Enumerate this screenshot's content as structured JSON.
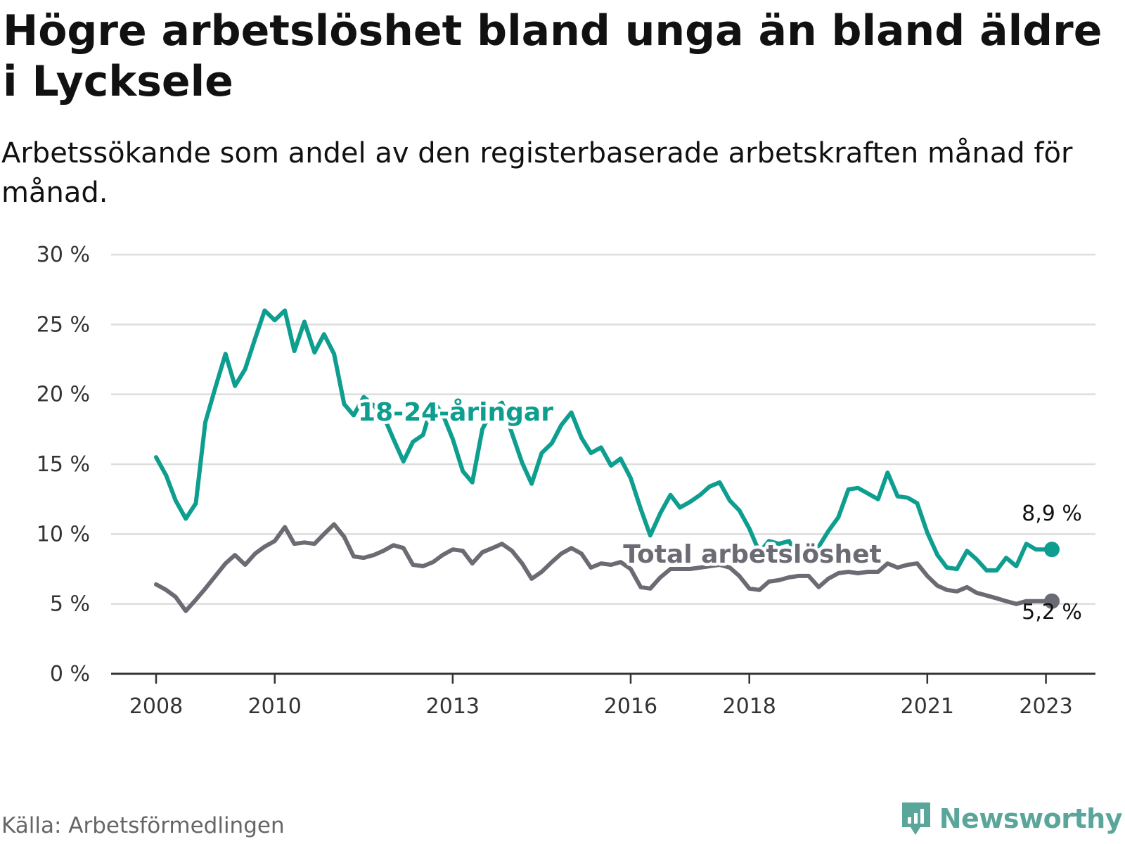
{
  "title": "Högre arbetslöshet bland unga än bland äldre i Lycksele",
  "subtitle": "Arbetssökande som andel av den registerbaserade arbetskraften månad för månad.",
  "source": "Källa: Arbetsförmedlingen",
  "brand": {
    "name": "Newsworthy",
    "icon": "newsworthy-logo-icon",
    "color": "#5aa69b"
  },
  "colors": {
    "youth": "#0e9e8f",
    "total": "#6b6b73",
    "grid": "#dddddd",
    "axis": "#333333"
  },
  "chart_data": {
    "type": "line",
    "x_ticks": [
      "2008",
      "2010",
      "2013",
      "2016",
      "2018",
      "2021",
      "2023"
    ],
    "y_ticks": [
      "0 %",
      "5 %",
      "10 %",
      "15 %",
      "20 %",
      "25 %",
      "30 %"
    ],
    "ylim": [
      0,
      30
    ],
    "grid": true,
    "series": [
      {
        "key": "youth",
        "name": "18-24-åringar",
        "end_label": "8,9 %",
        "x": [
          2008.0,
          2008.17,
          2008.33,
          2008.5,
          2008.67,
          2008.83,
          2009.0,
          2009.17,
          2009.33,
          2009.5,
          2009.67,
          2009.83,
          2010.0,
          2010.17,
          2010.33,
          2010.5,
          2010.67,
          2010.83,
          2011.0,
          2011.17,
          2011.33,
          2011.5,
          2011.67,
          2011.83,
          2012.0,
          2012.17,
          2012.33,
          2012.5,
          2012.67,
          2012.83,
          2013.0,
          2013.17,
          2013.33,
          2013.5,
          2013.67,
          2013.83,
          2014.0,
          2014.17,
          2014.33,
          2014.5,
          2014.67,
          2014.83,
          2015.0,
          2015.17,
          2015.33,
          2015.5,
          2015.67,
          2015.83,
          2016.0,
          2016.17,
          2016.33,
          2016.5,
          2016.67,
          2016.83,
          2017.0,
          2017.17,
          2017.33,
          2017.5,
          2017.67,
          2017.83,
          2018.0,
          2018.17,
          2018.33,
          2018.5,
          2018.67,
          2018.83,
          2019.0,
          2019.17,
          2019.33,
          2019.5,
          2019.67,
          2019.83,
          2020.0,
          2020.17,
          2020.33,
          2020.5,
          2020.67,
          2020.83,
          2021.0,
          2021.17,
          2021.33,
          2021.5,
          2021.67,
          2021.83,
          2022.0,
          2022.17,
          2022.33,
          2022.5,
          2022.67,
          2022.83,
          2023.0,
          2023.1
        ],
        "values": [
          15.5,
          14.2,
          12.4,
          11.1,
          12.2,
          18.0,
          20.5,
          22.9,
          20.6,
          21.8,
          24.0,
          26.0,
          25.3,
          26.0,
          23.1,
          25.2,
          23.0,
          24.3,
          22.9,
          19.3,
          18.5,
          19.8,
          19.2,
          18.5,
          16.8,
          15.2,
          16.6,
          17.1,
          19.5,
          18.6,
          16.8,
          14.5,
          13.7,
          17.5,
          18.9,
          19.4,
          17.2,
          15.1,
          13.6,
          15.8,
          16.5,
          17.8,
          18.7,
          16.9,
          15.8,
          16.2,
          14.9,
          15.4,
          14.0,
          11.8,
          9.9,
          11.5,
          12.8,
          11.9,
          12.3,
          12.8,
          13.4,
          13.7,
          12.4,
          11.7,
          10.4,
          8.7,
          9.5,
          9.3,
          9.5,
          8.3,
          8.4,
          9.1,
          10.2,
          11.2,
          13.2,
          13.3,
          12.9,
          12.5,
          14.4,
          12.7,
          12.6,
          12.2,
          10.1,
          8.5,
          7.6,
          7.5,
          8.8,
          8.2,
          7.4,
          7.4,
          8.3,
          7.7,
          9.3,
          8.9,
          8.9,
          8.9
        ]
      },
      {
        "key": "total",
        "name": "Total arbetslöshet",
        "end_label": "5,2 %",
        "x": [
          2008.0,
          2008.17,
          2008.33,
          2008.5,
          2008.67,
          2008.83,
          2009.0,
          2009.17,
          2009.33,
          2009.5,
          2009.67,
          2009.83,
          2010.0,
          2010.17,
          2010.33,
          2010.5,
          2010.67,
          2010.83,
          2011.0,
          2011.17,
          2011.33,
          2011.5,
          2011.67,
          2011.83,
          2012.0,
          2012.17,
          2012.33,
          2012.5,
          2012.67,
          2012.83,
          2013.0,
          2013.17,
          2013.33,
          2013.5,
          2013.67,
          2013.83,
          2014.0,
          2014.17,
          2014.33,
          2014.5,
          2014.67,
          2014.83,
          2015.0,
          2015.17,
          2015.33,
          2015.5,
          2015.67,
          2015.83,
          2016.0,
          2016.17,
          2016.33,
          2016.5,
          2016.67,
          2016.83,
          2017.0,
          2017.17,
          2017.33,
          2017.5,
          2017.67,
          2017.83,
          2018.0,
          2018.17,
          2018.33,
          2018.5,
          2018.67,
          2018.83,
          2019.0,
          2019.17,
          2019.33,
          2019.5,
          2019.67,
          2019.83,
          2020.0,
          2020.17,
          2020.33,
          2020.5,
          2020.67,
          2020.83,
          2021.0,
          2021.17,
          2021.33,
          2021.5,
          2021.67,
          2021.83,
          2022.0,
          2022.17,
          2022.33,
          2022.5,
          2022.67,
          2022.83,
          2023.0,
          2023.1
        ],
        "values": [
          6.4,
          6.0,
          5.5,
          4.5,
          5.3,
          6.1,
          7.0,
          7.9,
          8.5,
          7.8,
          8.6,
          9.1,
          9.5,
          10.5,
          9.3,
          9.4,
          9.3,
          10.0,
          10.7,
          9.8,
          8.4,
          8.3,
          8.5,
          8.8,
          9.2,
          9.0,
          7.8,
          7.7,
          8.0,
          8.5,
          8.9,
          8.8,
          7.9,
          8.7,
          9.0,
          9.3,
          8.8,
          7.9,
          6.8,
          7.3,
          8.0,
          8.6,
          9.0,
          8.6,
          7.6,
          7.9,
          7.8,
          8.0,
          7.5,
          6.2,
          6.1,
          6.9,
          7.5,
          7.5,
          7.5,
          7.6,
          7.7,
          7.8,
          7.6,
          7.0,
          6.1,
          6.0,
          6.6,
          6.7,
          6.9,
          7.0,
          7.0,
          6.2,
          6.8,
          7.2,
          7.3,
          7.2,
          7.3,
          7.3,
          7.9,
          7.6,
          7.8,
          7.9,
          7.0,
          6.3,
          6.0,
          5.9,
          6.2,
          5.8,
          5.6,
          5.4,
          5.2,
          5.0,
          5.2,
          5.2,
          5.2,
          5.2
        ]
      }
    ]
  }
}
